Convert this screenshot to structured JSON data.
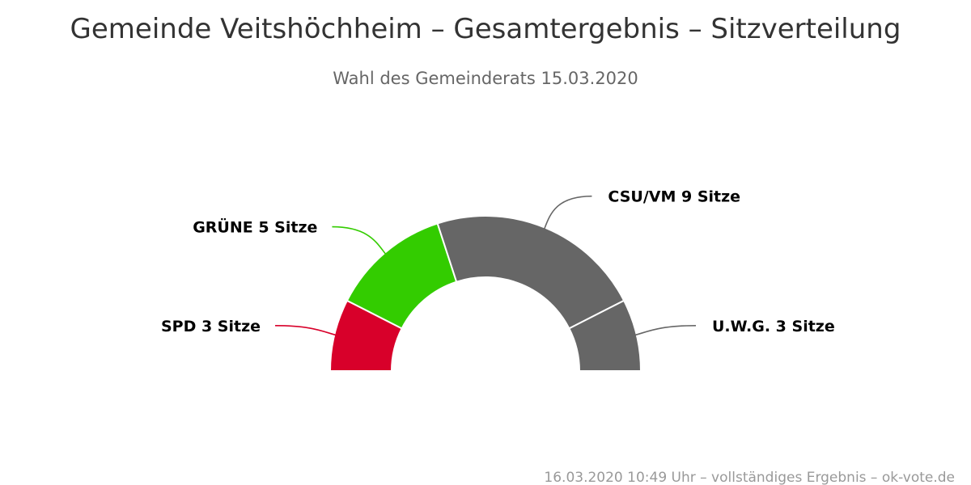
{
  "chart_data": {
    "type": "pie",
    "variant": "semicircle-donut",
    "title": "Gemeinde Veitshöchheim – Gesamtergebnis – Sitzverteilung",
    "subtitle": "Wahl des Gemeinderats 15.03.2020",
    "credit": "16.03.2020 10:49 Uhr – vollständiges Ergebnis – ok-vote.de",
    "legend": false,
    "series": [
      {
        "slices": [
          {
            "name": "SPD",
            "value": 3,
            "color": "#d8002a",
            "label": "SPD 3 Sitze"
          },
          {
            "name": "GRÜNE",
            "value": 5,
            "color": "#33cc00",
            "label": "GRÜNE 5 Sitze"
          },
          {
            "name": "CSU/VM",
            "value": 9,
            "color": "#666666",
            "label": "CSU/VM 9 Sitze"
          },
          {
            "name": "U.W.G.",
            "value": 3,
            "color": "#666666",
            "label": "U.W.G. 3 Sitze"
          }
        ]
      }
    ]
  }
}
